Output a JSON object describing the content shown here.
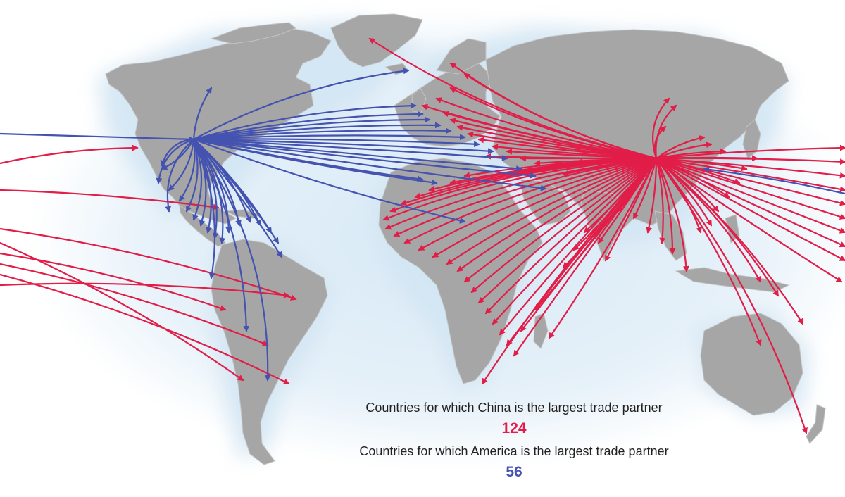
{
  "legend": {
    "china_caption": "Countries for which China is the largest trade partner",
    "china_count": "124",
    "us_caption": "Countries for which America is the largest trade partner",
    "us_count": "56"
  },
  "colors": {
    "china": "#e11d48",
    "us": "#4452b0",
    "land": "#a6a6a6",
    "ocean_glow": "#dcebf6"
  }
}
